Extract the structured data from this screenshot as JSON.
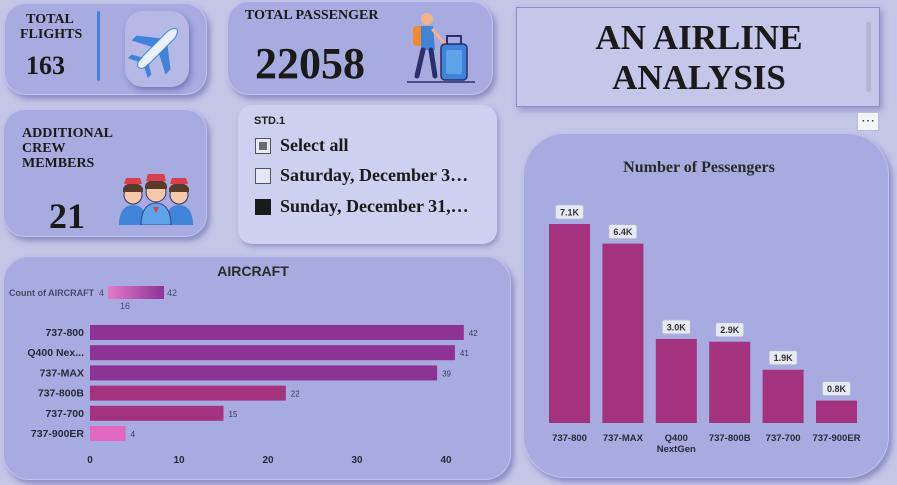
{
  "kpis": {
    "flights": {
      "label_line1": "TOTAL",
      "label_line2": "FLIGHTS",
      "value": "163"
    },
    "passengers": {
      "label": "TOTAL PASSENGER",
      "value": "22058"
    },
    "crew": {
      "label_line1": "ADDITIONAL",
      "label_line2": "CREW",
      "label_line3": "MEMBERS",
      "value": "21"
    }
  },
  "icons": {
    "flights": "airplane-icon",
    "passengers": "traveler-luggage-icon",
    "crew": "flight-attendants-icon"
  },
  "title": {
    "line1": "AN AIRLINE",
    "line2": "ANALYSIS"
  },
  "more_options": "⋯",
  "slicer": {
    "title": "STD.1",
    "options": [
      "Select all",
      "Saturday, December 3…",
      "Sunday, December 31,…"
    ],
    "states": [
      "partial",
      "unchecked",
      "checked"
    ]
  },
  "colors": {
    "bar_main": "#a4337f",
    "bar_purple": "#8e3396",
    "bar_pink": "#e068c0",
    "card": "#a7abdf"
  },
  "chart_data": [
    {
      "type": "bar",
      "orientation": "horizontal",
      "title": "AIRCRAFT",
      "categories": [
        "737-800",
        "Q400 Nex...",
        "737-MAX",
        "737-800B",
        "737-700",
        "737-900ER"
      ],
      "values": [
        42,
        41,
        39,
        22,
        15,
        4
      ],
      "data_labels": [
        "42",
        "41",
        "39",
        "22",
        "15",
        "4"
      ],
      "x_ticks": [
        "0",
        "10",
        "20",
        "30",
        "40"
      ],
      "xlim": [
        0,
        45
      ],
      "legend": {
        "label": "Count of AIRCRAFT",
        "min": "4",
        "max": "42",
        "mid": "16"
      }
    },
    {
      "type": "bar",
      "title": "Number of Pessengers",
      "categories": [
        "737-800",
        "737-MAX",
        "Q400 NextGen",
        "737-800B",
        "737-700",
        "737-900ER"
      ],
      "category_lines": [
        [
          "737-800"
        ],
        [
          "737-MAX"
        ],
        [
          "Q400",
          "NextGen"
        ],
        [
          "737-800B"
        ],
        [
          "737-700"
        ],
        [
          "737-900ER"
        ]
      ],
      "values": [
        7100,
        6400,
        3000,
        2900,
        1900,
        800
      ],
      "data_labels": [
        "7.1K",
        "6.4K",
        "3.0K",
        "2.9K",
        "1.9K",
        "0.8K"
      ],
      "ylim": [
        0,
        7800
      ]
    }
  ]
}
